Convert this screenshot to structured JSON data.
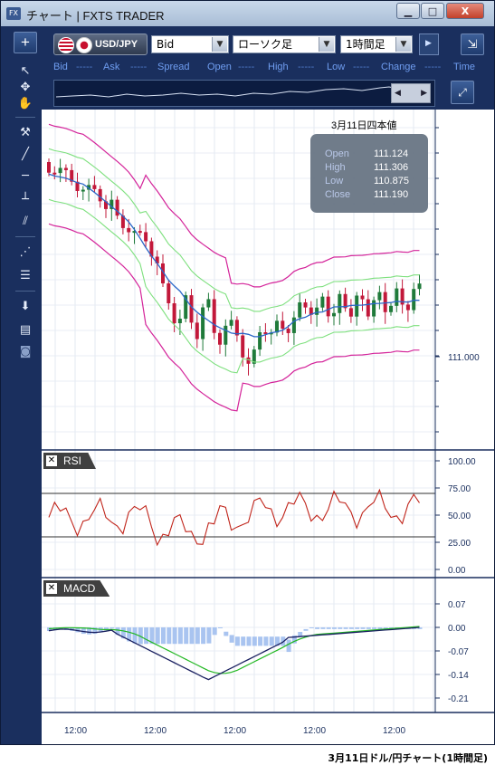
{
  "window": {
    "title": "チャート | FXTS TRADER",
    "app_icon": "FX",
    "minimize_glyph": "▁",
    "maximize_glyph": "□",
    "close_glyph": "X"
  },
  "toolbar": {
    "add_glyph": "+",
    "symbol": "USD/JPY",
    "price_type": "Bid",
    "chart_type": "ローソク足",
    "timeframe": "1時間足",
    "collapse_glyph": "⇲"
  },
  "quote_header": {
    "bid_label": "Bid",
    "bid_value": "-----",
    "ask_label": "Ask",
    "ask_value": "-----",
    "spread_label": "Spread",
    "open_label": "Open",
    "open_value": "-----",
    "high_label": "High",
    "high_value": "-----",
    "low_label": "Low",
    "low_value": "-----",
    "change_label": "Change",
    "change_value": "-----",
    "time_label": "Time"
  },
  "ohlc_box": {
    "date": "3月11日四本値",
    "open_label": "Open",
    "open": "111.124",
    "high_label": "High",
    "high": "111.306",
    "low_label": "Low",
    "low": "110.875",
    "close_label": "Close",
    "close": "111.190"
  },
  "main_axis": {
    "label": "111.000",
    "value": 111.0
  },
  "rsi": {
    "label": "RSI",
    "ticks": [
      "100.00",
      "75.00",
      "50.00",
      "25.00",
      "0.00"
    ],
    "levels": [
      70,
      30
    ]
  },
  "macd": {
    "label": "MACD",
    "ticks": [
      "0.07",
      "0.00",
      "-0.07",
      "-0.14",
      "-0.21"
    ]
  },
  "time_axis": {
    "ticks": [
      "12:00",
      "12:00",
      "12:00",
      "12:00",
      "12:00"
    ]
  },
  "colors": {
    "window_bg": "#1a2f5e",
    "bull_candle": "#1f7a3a",
    "bear_candle": "#c2183a",
    "bollinger_outer": "#d4249a",
    "bollinger_inner": "#7ee07e",
    "moving_average": "#2a66c8",
    "rsi_line": "#c0241a",
    "macd_line": "#1a2060",
    "signal_line": "#22b822",
    "histogram": "#a9c4f0"
  },
  "icons": [
    "plus-icon",
    "cursor-icon",
    "crosshair-icon",
    "hand-icon",
    "hammer-icon",
    "trendline-icon",
    "horizontal-line-icon",
    "vertical-line-icon",
    "channel-icon",
    "fan-icon",
    "fibonacci-icon",
    "download-icon",
    "list-icon",
    "camera-icon"
  ],
  "caption": "3月11日ドル/円チャート(1時間足)"
}
